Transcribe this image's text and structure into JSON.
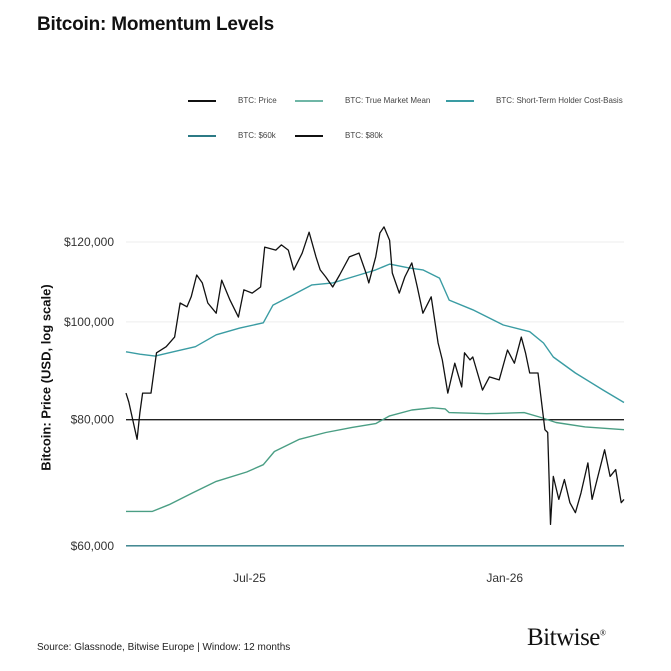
{
  "title": "Bitcoin: Momentum Levels",
  "source": "Source: Glassnode, Bitwise Europe | Window: 12 months",
  "logo": "Bitwise",
  "chart_data": {
    "type": "line",
    "ylabel": "Bitcoin: Price (USD, log scale)",
    "xlabel": "",
    "y_scale": "log",
    "ylim": [
      59700,
      125600
    ],
    "xlim": [
      "2025-04-03",
      "2026-03-28"
    ],
    "grid": true,
    "legend_position": "top",
    "y_ticks": [
      {
        "value": 60000,
        "label": "$60,000"
      },
      {
        "value": 80000,
        "label": "$80,000"
      },
      {
        "value": 100000,
        "label": "$100,000"
      },
      {
        "value": 120000,
        "label": "$120,000"
      }
    ],
    "x_ticks": [
      {
        "value": "2025-07-01",
        "label": "Jul-25"
      },
      {
        "value": "2026-01-01",
        "label": "Jan-26"
      }
    ],
    "series": [
      {
        "name": "BTC: Price",
        "color": "#111111",
        "x": [
          "2025-04-03",
          "2025-04-05",
          "2025-04-09",
          "2025-04-11",
          "2025-04-13",
          "2025-04-15",
          "2025-04-21",
          "2025-04-25",
          "2025-05-02",
          "2025-05-08",
          "2025-05-12",
          "2025-05-17",
          "2025-05-20",
          "2025-05-24",
          "2025-05-28",
          "2025-06-01",
          "2025-06-07",
          "2025-06-11",
          "2025-06-17",
          "2025-06-23",
          "2025-06-27",
          "2025-07-03",
          "2025-07-09",
          "2025-07-12",
          "2025-07-20",
          "2025-07-24",
          "2025-07-29",
          "2025-08-02",
          "2025-08-08",
          "2025-08-13",
          "2025-08-18",
          "2025-08-21",
          "2025-08-25",
          "2025-08-30",
          "2025-09-04",
          "2025-09-11",
          "2025-09-18",
          "2025-09-23",
          "2025-09-25",
          "2025-09-30",
          "2025-10-03",
          "2025-10-06",
          "2025-10-10",
          "2025-10-12",
          "2025-10-17",
          "2025-10-21",
          "2025-10-26",
          "2025-10-30",
          "2025-11-03",
          "2025-11-09",
          "2025-11-14",
          "2025-11-17",
          "2025-11-21",
          "2025-11-26",
          "2025-12-01",
          "2025-12-03",
          "2025-12-07",
          "2025-12-09",
          "2025-12-16",
          "2025-12-21",
          "2025-12-28",
          "2026-01-03",
          "2026-01-08",
          "2026-01-13",
          "2026-01-16",
          "2026-01-19",
          "2026-01-25",
          "2026-01-30",
          "2026-02-01",
          "2026-02-03",
          "2026-02-05",
          "2026-02-09",
          "2026-02-13",
          "2026-02-17",
          "2026-02-21",
          "2026-02-25",
          "2026-03-02",
          "2026-03-05",
          "2026-03-14",
          "2026-03-18",
          "2026-03-22",
          "2026-03-26",
          "2026-03-28"
        ],
        "y": [
          85000,
          83300,
          78700,
          76500,
          81300,
          85000,
          85000,
          93200,
          94500,
          96600,
          104400,
          103500,
          105900,
          111300,
          109300,
          104400,
          102000,
          110000,
          105100,
          101100,
          107600,
          106800,
          108300,
          118600,
          117800,
          119200,
          117800,
          112600,
          117000,
          122700,
          116000,
          112600,
          110800,
          108300,
          111300,
          116000,
          117000,
          111800,
          109300,
          116000,
          122500,
          124200,
          120500,
          111800,
          106800,
          110800,
          114400,
          108300,
          102000,
          105900,
          95300,
          91700,
          85000,
          91000,
          86200,
          93200,
          91700,
          92300,
          85600,
          88200,
          87600,
          93800,
          91000,
          96600,
          93200,
          89000,
          89000,
          78200,
          77700,
          63000,
          70300,
          66700,
          69800,
          66200,
          64700,
          67700,
          72500,
          66700,
          74700,
          70300,
          71400,
          66200,
          66700
        ]
      },
      {
        "name": "BTC: True Market Mean",
        "color": "#4a9e84",
        "x": [
          "2025-04-03",
          "2025-04-22",
          "2025-05-04",
          "2025-05-21",
          "2025-06-07",
          "2025-06-29",
          "2025-07-11",
          "2025-07-19",
          "2025-08-06",
          "2025-08-25",
          "2025-09-13",
          "2025-09-30",
          "2025-10-10",
          "2025-10-26",
          "2025-11-10",
          "2025-11-19",
          "2025-11-22",
          "2025-12-19",
          "2026-01-15",
          "2026-01-26",
          "2026-02-07",
          "2026-02-28",
          "2026-03-28"
        ],
        "y": [
          64900,
          64900,
          65900,
          67700,
          69500,
          71000,
          72200,
          74400,
          76500,
          77700,
          78600,
          79300,
          80700,
          81800,
          82200,
          82000,
          81300,
          81100,
          81300,
          80500,
          79500,
          78700,
          78200
        ]
      },
      {
        "name": "BTC: Short-Term Holder Cost-Basis",
        "color": "#3a9ca3",
        "x": [
          "2025-04-03",
          "2025-04-13",
          "2025-04-24",
          "2025-05-07",
          "2025-05-23",
          "2025-06-07",
          "2025-06-24",
          "2025-07-11",
          "2025-07-18",
          "2025-08-01",
          "2025-08-15",
          "2025-08-30",
          "2025-09-18",
          "2025-09-30",
          "2025-10-10",
          "2025-10-24",
          "2025-11-03",
          "2025-11-15",
          "2025-11-22",
          "2025-12-09",
          "2025-12-31",
          "2026-01-19",
          "2026-01-29",
          "2026-02-05",
          "2026-02-21",
          "2026-03-13",
          "2026-03-28"
        ],
        "y": [
          93400,
          92900,
          92500,
          93400,
          94500,
          97100,
          98600,
          99800,
          103900,
          106300,
          108800,
          109300,
          111300,
          112600,
          114100,
          113100,
          112600,
          110500,
          105100,
          102800,
          99300,
          97800,
          95300,
          92300,
          89000,
          85600,
          83200
        ]
      },
      {
        "name": "BTC: $60k",
        "color": "#2c7a85",
        "x": [
          "2025-04-03",
          "2026-03-28"
        ],
        "y": [
          60000,
          60000
        ]
      },
      {
        "name": "BTC: $80k",
        "color": "#222222",
        "x": [
          "2025-04-03",
          "2026-03-28"
        ],
        "y": [
          80000,
          80000
        ]
      }
    ]
  }
}
